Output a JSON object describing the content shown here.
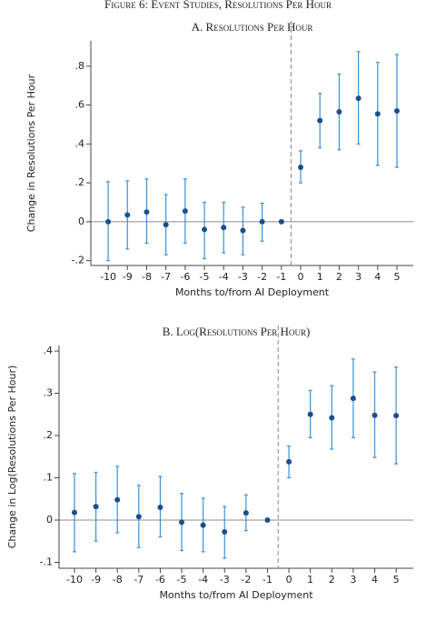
{
  "caption": "Figure 6: Event Studies, Resolutions Per Hour",
  "chart_data": [
    {
      "type": "errorbar",
      "title": "A. Resolutions Per Hour",
      "xlabel": "Months to/from AI Deployment",
      "ylabel": "Change in Resolutions Per Hour",
      "x": [
        -10,
        -9,
        -8,
        -7,
        -6,
        -5,
        -4,
        -3,
        -2,
        -1,
        0,
        1,
        2,
        3,
        4,
        5
      ],
      "series": [
        {
          "color": "#1b4f8c",
          "bar_color": "#3b8fd8",
          "values": [
            0.0,
            0.035,
            0.05,
            -0.015,
            0.055,
            -0.04,
            -0.03,
            -0.045,
            0.0,
            0,
            0.28,
            0.52,
            0.565,
            0.635,
            0.555,
            0.57
          ],
          "lower": [
            -0.2,
            -0.14,
            -0.11,
            -0.17,
            -0.11,
            -0.19,
            -0.16,
            -0.17,
            -0.1,
            0,
            0.2,
            0.38,
            0.37,
            0.4,
            0.29,
            0.28
          ],
          "upper": [
            0.206,
            0.21,
            0.22,
            0.14,
            0.22,
            0.1,
            0.1,
            0.075,
            0.095,
            0,
            0.365,
            0.66,
            0.76,
            0.875,
            0.82,
            0.86
          ]
        }
      ],
      "xlim": [
        -10.9,
        5.85
      ],
      "xticks": [
        -10,
        -9,
        -8,
        -7,
        -6,
        -5,
        -4,
        -3,
        -2,
        -1,
        0,
        1,
        2,
        3,
        4,
        5
      ],
      "ylim": [
        -0.225,
        0.93
      ],
      "yticks": [
        {
          "value": -0.2,
          "label": "-.2"
        },
        0,
        {
          "value": 0.2,
          "label": ".2"
        },
        {
          "value": 0.4,
          "label": ".4"
        },
        {
          "value": 0.6,
          "label": ".6"
        },
        {
          "value": 0.8,
          "label": ".8"
        }
      ],
      "vline": -0.5,
      "hline": 0
    },
    {
      "type": "errorbar",
      "title": "B. Log(Resolutions Per Hour)",
      "xlabel": "Months to/from AI Deployment",
      "ylabel": "Change in Log(Resolutions Per Hour)",
      "x": [
        -10,
        -9,
        -8,
        -7,
        -6,
        -5,
        -4,
        -3,
        -2,
        -1,
        0,
        1,
        2,
        3,
        4,
        5
      ],
      "series": [
        {
          "color": "#1b4f8c",
          "bar_color": "#3b8fd8",
          "values": [
            0.018,
            0.032,
            0.048,
            0.008,
            0.03,
            -0.005,
            -0.012,
            -0.028,
            0.017,
            0,
            0.138,
            0.25,
            0.242,
            0.288,
            0.248,
            0.247
          ],
          "lower": [
            -0.075,
            -0.05,
            -0.03,
            -0.065,
            -0.04,
            -0.072,
            -0.075,
            -0.09,
            -0.025,
            0,
            0.1,
            0.195,
            0.168,
            0.195,
            0.148,
            0.133
          ],
          "upper": [
            0.11,
            0.113,
            0.127,
            0.082,
            0.103,
            0.063,
            0.052,
            0.032,
            0.06,
            0,
            0.175,
            0.307,
            0.318,
            0.381,
            0.35,
            0.362
          ]
        }
      ],
      "xlim": [
        -10.72,
        5.8
      ],
      "xticks": [
        -10,
        -9,
        -8,
        -7,
        -6,
        -5,
        -4,
        -3,
        -2,
        -1,
        0,
        1,
        2,
        3,
        4,
        5
      ],
      "ylim": [
        -0.114,
        0.413
      ],
      "yticks": [
        {
          "value": -0.1,
          "label": "-.1"
        },
        0,
        {
          "value": 0.1,
          "label": ".1"
        },
        {
          "value": 0.2,
          "label": ".2"
        },
        {
          "value": 0.3,
          "label": ".3"
        },
        {
          "value": 0.4,
          "label": ".4"
        }
      ],
      "vline": -0.5,
      "hline": 0
    }
  ]
}
